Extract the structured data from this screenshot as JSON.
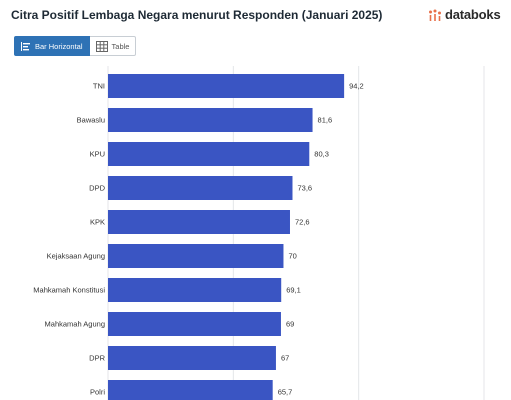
{
  "header": {
    "title": "Citra Positif Lembaga Negara menurut Responden (Januari 2025)",
    "brand": "databoks"
  },
  "toolbar": {
    "bar_label": "Bar Horizontal",
    "table_label": "Table",
    "active": "Bar Horizontal"
  },
  "colors": {
    "bar": "#3a55c3",
    "button_active": "#2e72b5",
    "brand_icon": "#e8704a"
  },
  "chart_data": {
    "type": "bar",
    "orientation": "horizontal",
    "title": "Citra Positif Lembaga Negara menurut Responden (Januari 2025)",
    "categories": [
      "TNI",
      "Bawaslu",
      "KPU",
      "DPD",
      "KPK",
      "Kejaksaan Agung",
      "Mahkamah Konstitusi",
      "Mahkamah Agung",
      "DPR",
      "Polri"
    ],
    "values": [
      94.2,
      81.6,
      80.3,
      73.6,
      72.6,
      70,
      69.1,
      69,
      67,
      65.7
    ],
    "value_labels": [
      "94,2",
      "81,6",
      "80,3",
      "73,6",
      "72,6",
      "70",
      "69,1",
      "69",
      "67",
      "65,7"
    ],
    "xlim": [
      0,
      150
    ],
    "grid": true
  }
}
